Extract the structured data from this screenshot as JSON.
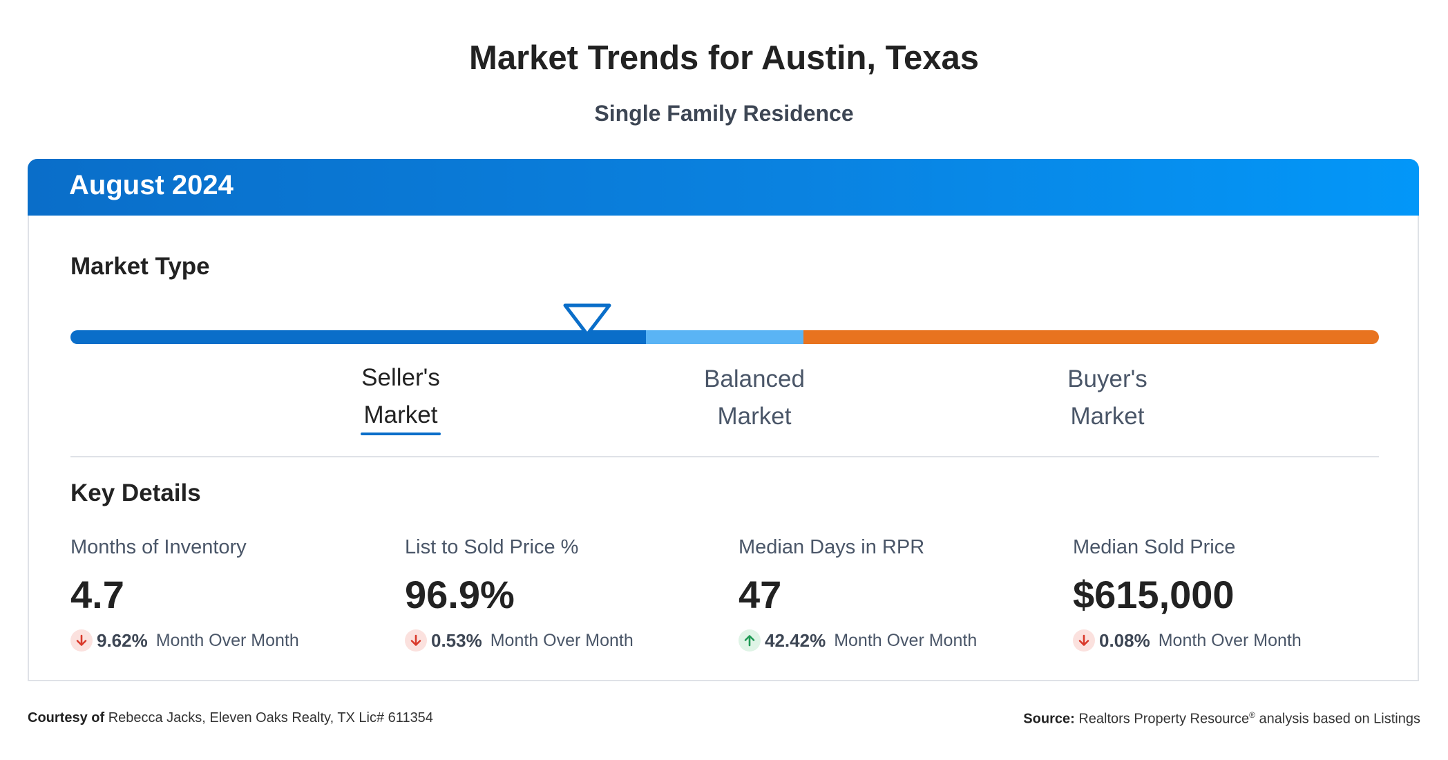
{
  "page": {
    "title": "Market Trends for Austin, Texas",
    "subtitle": "Single Family Residence"
  },
  "card": {
    "header_title": "August 2024",
    "header_gradient": [
      "#0a6ec9",
      "#0397f8"
    ]
  },
  "market_type": {
    "title": "Market Type",
    "segments": [
      {
        "label_line1": "Seller's",
        "label_line2": "Market",
        "color": "#0a6ec9",
        "active": true
      },
      {
        "label_line1": "Balanced",
        "label_line2": "Market",
        "color": "#5ab4f5",
        "active": false
      },
      {
        "label_line1": "Buyer's",
        "label_line2": "Market",
        "color": "#e8731f",
        "active": false
      }
    ],
    "indicator_position_fraction": 0.394
  },
  "key_details": {
    "title": "Key Details",
    "metrics": [
      {
        "label": "Months of Inventory",
        "value": "4.7",
        "change": "9.62%",
        "change_text": "Month Over Month",
        "direction": "down",
        "icon": "arrow-down-icon"
      },
      {
        "label": "List to Sold Price %",
        "value": "96.9%",
        "change": "0.53%",
        "change_text": "Month Over Month",
        "direction": "down",
        "icon": "arrow-down-icon"
      },
      {
        "label": "Median Days in RPR",
        "value": "47",
        "change": "42.42%",
        "change_text": "Month Over Month",
        "direction": "up",
        "icon": "arrow-up-icon"
      },
      {
        "label": "Median Sold Price",
        "value": "$615,000",
        "change": "0.08%",
        "change_text": "Month Over Month",
        "direction": "down",
        "icon": "arrow-down-icon"
      }
    ]
  },
  "footer": {
    "courtesy_label": "Courtesy of",
    "courtesy_text": "Rebecca Jacks, Eleven Oaks Realty, TX Lic# 611354",
    "source_label": "Source:",
    "source_text_1": "Realtors Property Resource",
    "source_registered": "®",
    "source_text_2": "analysis based on Listings"
  },
  "colors": {
    "down_arrow": "#d9392b",
    "down_bg": "#fbe1de",
    "up_arrow": "#1f9a55",
    "up_bg": "#dff4e6"
  }
}
